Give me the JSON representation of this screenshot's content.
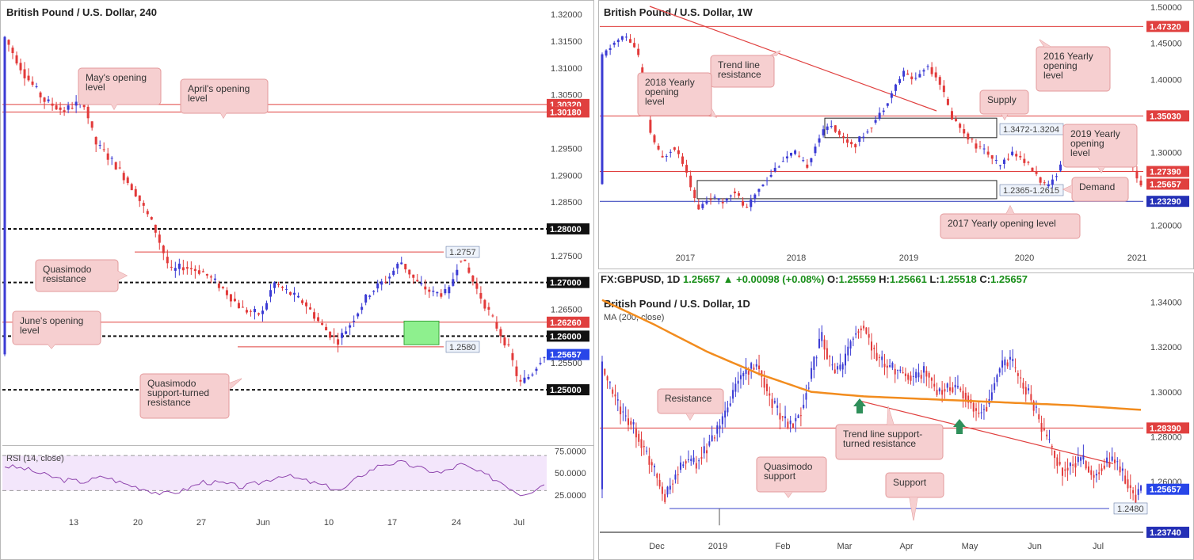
{
  "colors": {
    "up": "#3b3bd4",
    "down": "#e23a3a",
    "level": "#e0403f",
    "support": "#3a46c8",
    "ma": "#f28c1e",
    "callout_fill": "#f6cfd0",
    "callout_stroke": "#e39a9b",
    "box_fill": "#8ef08e",
    "current_label": "#2846e8"
  },
  "chart_data": [
    {
      "id": "h4",
      "type": "candlestick",
      "title": "British Pound / U.S. Dollar, 240",
      "ylim": [
        1.241,
        1.3215
      ],
      "yticks": [
        {
          "v": 1.32,
          "t": "1.32000"
        },
        {
          "v": 1.315,
          "t": "1.31500"
        },
        {
          "v": 1.31,
          "t": "1.31000"
        },
        {
          "v": 1.305,
          "t": "1.30500"
        },
        {
          "v": 1.295,
          "t": "1.29500"
        },
        {
          "v": 1.29,
          "t": "1.29000"
        },
        {
          "v": 1.285,
          "t": "1.28500"
        },
        {
          "v": 1.275,
          "t": "1.27500"
        },
        {
          "v": 1.265,
          "t": "1.26500"
        },
        {
          "v": 1.255,
          "t": "1.25500"
        }
      ],
      "xticks": [
        "13",
        "20",
        "27",
        "Jun",
        "10",
        "17",
        "24",
        "Jul"
      ],
      "price_labels": [
        {
          "v": 1.3032,
          "t": "1.30320",
          "kind": "red"
        },
        {
          "v": 1.3018,
          "t": "1.30180",
          "kind": "red"
        },
        {
          "v": 1.28,
          "t": "1.28000",
          "kind": "black"
        },
        {
          "v": 1.27,
          "t": "1.27000",
          "kind": "black"
        },
        {
          "v": 1.2626,
          "t": "1.26260",
          "kind": "red"
        },
        {
          "v": 1.26,
          "t": "1.26000",
          "kind": "black"
        },
        {
          "v": 1.25657,
          "t": "1.25657",
          "kind": "current"
        },
        {
          "v": 1.25,
          "t": "1.25000",
          "kind": "black"
        }
      ],
      "inline_labels": [
        {
          "v": 1.2757,
          "t": "1.2757"
        },
        {
          "v": 1.258,
          "t": "1.2580"
        }
      ],
      "levels": {
        "red": [
          1.3032,
          1.3018,
          1.2757,
          1.2626,
          1.258
        ],
        "dashed": [
          1.28,
          1.27,
          1.26,
          1.25
        ]
      },
      "callouts": [
        {
          "lines": [
            "May's opening",
            "level"
          ]
        },
        {
          "lines": [
            "April's opening",
            "level"
          ]
        },
        {
          "lines": [
            "Quasimodo",
            "resistance"
          ]
        },
        {
          "lines": [
            "June's opening",
            "level"
          ]
        },
        {
          "lines": [
            "Quasimodo",
            "support-turned",
            "resistance"
          ]
        }
      ],
      "zone": [
        1.2584,
        1.2628
      ],
      "path": [
        [
          0,
          1.316
        ],
        [
          5,
          1.309
        ],
        [
          10,
          1.304
        ],
        [
          15,
          1.302
        ],
        [
          20,
          1.304
        ],
        [
          23,
          1.296
        ],
        [
          28,
          1.292
        ],
        [
          33,
          1.287
        ],
        [
          38,
          1.28
        ],
        [
          42,
          1.272
        ],
        [
          45,
          1.273
        ],
        [
          50,
          1.272
        ],
        [
          55,
          1.269
        ],
        [
          60,
          1.265
        ],
        [
          65,
          1.264
        ],
        [
          68,
          1.27
        ],
        [
          72,
          1.268
        ],
        [
          76,
          1.266
        ],
        [
          80,
          1.262
        ],
        [
          84,
          1.259
        ],
        [
          87,
          1.262
        ],
        [
          92,
          1.268
        ],
        [
          97,
          1.271
        ],
        [
          100,
          1.274
        ],
        [
          104,
          1.27
        ],
        [
          108,
          1.268
        ],
        [
          112,
          1.268
        ],
        [
          115,
          1.275
        ],
        [
          119,
          1.269
        ],
        [
          124,
          1.262
        ],
        [
          127,
          1.258
        ],
        [
          130,
          1.251
        ],
        [
          133,
          1.253
        ],
        [
          136,
          1.2566
        ]
      ],
      "n": 136
    },
    {
      "id": "rsi",
      "type": "line",
      "title": "RSI (14, close)",
      "ylim": [
        5,
        80
      ],
      "yticks": [
        {
          "v": 75,
          "t": "75.0000"
        },
        {
          "v": 50,
          "t": "50.0000"
        },
        {
          "v": 25,
          "t": "25.0000"
        }
      ],
      "band": [
        30,
        70
      ],
      "path": [
        [
          0,
          58
        ],
        [
          5,
          55
        ],
        [
          10,
          48
        ],
        [
          15,
          42
        ],
        [
          20,
          40
        ],
        [
          25,
          46
        ],
        [
          30,
          38
        ],
        [
          35,
          32
        ],
        [
          40,
          26
        ],
        [
          45,
          30
        ],
        [
          50,
          40
        ],
        [
          55,
          38
        ],
        [
          60,
          34
        ],
        [
          65,
          40
        ],
        [
          70,
          48
        ],
        [
          75,
          42
        ],
        [
          80,
          36
        ],
        [
          85,
          30
        ],
        [
          90,
          48
        ],
        [
          95,
          60
        ],
        [
          100,
          62
        ],
        [
          105,
          55
        ],
        [
          110,
          50
        ],
        [
          115,
          60
        ],
        [
          120,
          50
        ],
        [
          125,
          40
        ],
        [
          130,
          26
        ],
        [
          133,
          30
        ],
        [
          136,
          38
        ]
      ]
    },
    {
      "id": "w1",
      "type": "candlestick",
      "title": "British Pound / U.S. Dollar, 1W",
      "ylim": [
        1.17,
        1.503
      ],
      "yticks": [
        {
          "v": 1.5,
          "t": "1.50000"
        },
        {
          "v": 1.45,
          "t": "1.45000"
        },
        {
          "v": 1.4,
          "t": "1.40000"
        },
        {
          "v": 1.3,
          "t": "1.30000"
        },
        {
          "v": 1.2,
          "t": "1.20000"
        }
      ],
      "xticks": [
        "2017",
        "2018",
        "2019",
        "2020",
        "2021"
      ],
      "price_labels": [
        {
          "v": 1.4732,
          "t": "1.47320",
          "kind": "red"
        },
        {
          "v": 1.3503,
          "t": "1.35030",
          "kind": "red"
        },
        {
          "v": 1.2739,
          "t": "1.27390",
          "kind": "red"
        },
        {
          "v": 1.25657,
          "t": "1.25657",
          "kind": "red"
        },
        {
          "v": 1.2329,
          "t": "1.23290",
          "kind": "blue"
        }
      ],
      "boxes": [
        {
          "label": "1.3472-1.3204",
          "top": 1.3472,
          "bottom": 1.3204
        },
        {
          "label": "1.2365-1.2615",
          "top": 1.2615,
          "bottom": 1.2365
        }
      ],
      "callouts": [
        {
          "lines": [
            "Trend line",
            "resistance"
          ]
        },
        {
          "lines": [
            "2018 Yearly",
            "opening",
            "level"
          ]
        },
        {
          "lines": [
            "2016 Yearly",
            "opening",
            "level"
          ]
        },
        {
          "lines": [
            "Supply"
          ]
        },
        {
          "lines": [
            "2019 Yearly",
            "opening",
            "level"
          ]
        },
        {
          "lines": [
            "Demand"
          ]
        },
        {
          "lines": [
            "2017 Yearly opening level"
          ]
        }
      ],
      "path": [
        [
          0,
          1.43
        ],
        [
          3,
          1.45
        ],
        [
          6,
          1.46
        ],
        [
          9,
          1.44
        ],
        [
          12,
          1.33
        ],
        [
          15,
          1.29
        ],
        [
          18,
          1.31
        ],
        [
          21,
          1.28
        ],
        [
          24,
          1.22
        ],
        [
          27,
          1.24
        ],
        [
          30,
          1.23
        ],
        [
          33,
          1.25
        ],
        [
          36,
          1.22
        ],
        [
          39,
          1.25
        ],
        [
          42,
          1.27
        ],
        [
          45,
          1.29
        ],
        [
          48,
          1.3
        ],
        [
          51,
          1.28
        ],
        [
          54,
          1.32
        ],
        [
          57,
          1.34
        ],
        [
          60,
          1.32
        ],
        [
          63,
          1.31
        ],
        [
          66,
          1.33
        ],
        [
          69,
          1.35
        ],
        [
          72,
          1.38
        ],
        [
          75,
          1.41
        ],
        [
          78,
          1.4
        ],
        [
          81,
          1.42
        ],
        [
          84,
          1.4
        ],
        [
          87,
          1.35
        ],
        [
          90,
          1.33
        ],
        [
          93,
          1.31
        ],
        [
          96,
          1.3
        ],
        [
          99,
          1.28
        ],
        [
          102,
          1.3
        ],
        [
          105,
          1.29
        ],
        [
          108,
          1.27
        ],
        [
          111,
          1.25
        ],
        [
          114,
          1.28
        ],
        [
          117,
          1.31
        ],
        [
          120,
          1.3
        ],
        [
          123,
          1.32
        ],
        [
          126,
          1.31
        ],
        [
          129,
          1.3
        ],
        [
          132,
          1.28
        ],
        [
          134,
          1.2566
        ]
      ],
      "n": 134
    },
    {
      "id": "d1",
      "type": "candlestick",
      "title": "British Pound / U.S. Dollar, 1D",
      "symbol_line": {
        "sym": "FX:GBPUSD, 1D",
        "last": "1.25657",
        "chg": "+0.00098 (+0.08%)",
        "o": "1.25559",
        "h": "1.25661",
        "l": "1.25518",
        "c": "1.25657",
        "o_lab": "O:",
        "h_lab": "H:",
        "l_lab": "L:",
        "c_lab": "C:"
      },
      "ma_label": "MA (200, close)",
      "ylim": [
        1.2335,
        1.3455
      ],
      "yticks": [
        {
          "v": 1.34,
          "t": "1.34000"
        },
        {
          "v": 1.32,
          "t": "1.32000"
        },
        {
          "v": 1.3,
          "t": "1.30000"
        },
        {
          "v": 1.28,
          "t": "1.28000"
        },
        {
          "v": 1.26,
          "t": "1.26000"
        }
      ],
      "xticks": [
        "Dec",
        "2019",
        "Feb",
        "Mar",
        "Apr",
        "May",
        "Jun",
        "Jul"
      ],
      "price_labels": [
        {
          "v": 1.2839,
          "t": "1.28390",
          "kind": "red"
        },
        {
          "v": 1.25657,
          "t": "1.25657",
          "kind": "current"
        },
        {
          "v": 1.2374,
          "t": "1.23740",
          "kind": "blue"
        }
      ],
      "inline_labels": [
        {
          "v": 1.248,
          "t": "1.2480"
        }
      ],
      "callouts": [
        {
          "lines": [
            "Resistance"
          ]
        },
        {
          "lines": [
            "Trend line support-",
            "turned resistance"
          ]
        },
        {
          "lines": [
            "Quasimodo",
            "support"
          ]
        },
        {
          "lines": [
            "Support"
          ]
        }
      ],
      "path": [
        [
          0,
          1.312
        ],
        [
          4,
          1.3
        ],
        [
          8,
          1.29
        ],
        [
          12,
          1.285
        ],
        [
          16,
          1.275
        ],
        [
          20,
          1.265
        ],
        [
          24,
          1.253
        ],
        [
          28,
          1.262
        ],
        [
          32,
          1.27
        ],
        [
          36,
          1.268
        ],
        [
          40,
          1.275
        ],
        [
          44,
          1.282
        ],
        [
          48,
          1.292
        ],
        [
          52,
          1.305
        ],
        [
          56,
          1.31
        ],
        [
          60,
          1.312
        ],
        [
          64,
          1.298
        ],
        [
          68,
          1.29
        ],
        [
          72,
          1.285
        ],
        [
          76,
          1.29
        ],
        [
          80,
          1.308
        ],
        [
          84,
          1.325
        ],
        [
          88,
          1.31
        ],
        [
          92,
          1.31
        ],
        [
          96,
          1.325
        ],
        [
          100,
          1.33
        ],
        [
          104,
          1.318
        ],
        [
          108,
          1.312
        ],
        [
          112,
          1.31
        ],
        [
          116,
          1.308
        ],
        [
          120,
          1.306
        ],
        [
          124,
          1.31
        ],
        [
          128,
          1.3
        ],
        [
          132,
          1.302
        ],
        [
          136,
          1.302
        ],
        [
          140,
          1.298
        ],
        [
          144,
          1.29
        ],
        [
          148,
          1.295
        ],
        [
          152,
          1.31
        ],
        [
          156,
          1.315
        ],
        [
          160,
          1.305
        ],
        [
          164,
          1.298
        ],
        [
          168,
          1.285
        ],
        [
          172,
          1.275
        ],
        [
          176,
          1.265
        ],
        [
          180,
          1.268
        ],
        [
          184,
          1.27
        ],
        [
          188,
          1.262
        ],
        [
          192,
          1.268
        ],
        [
          196,
          1.27
        ],
        [
          200,
          1.262
        ],
        [
          204,
          1.253
        ],
        [
          206,
          1.2566
        ]
      ],
      "n": 206
    }
  ]
}
